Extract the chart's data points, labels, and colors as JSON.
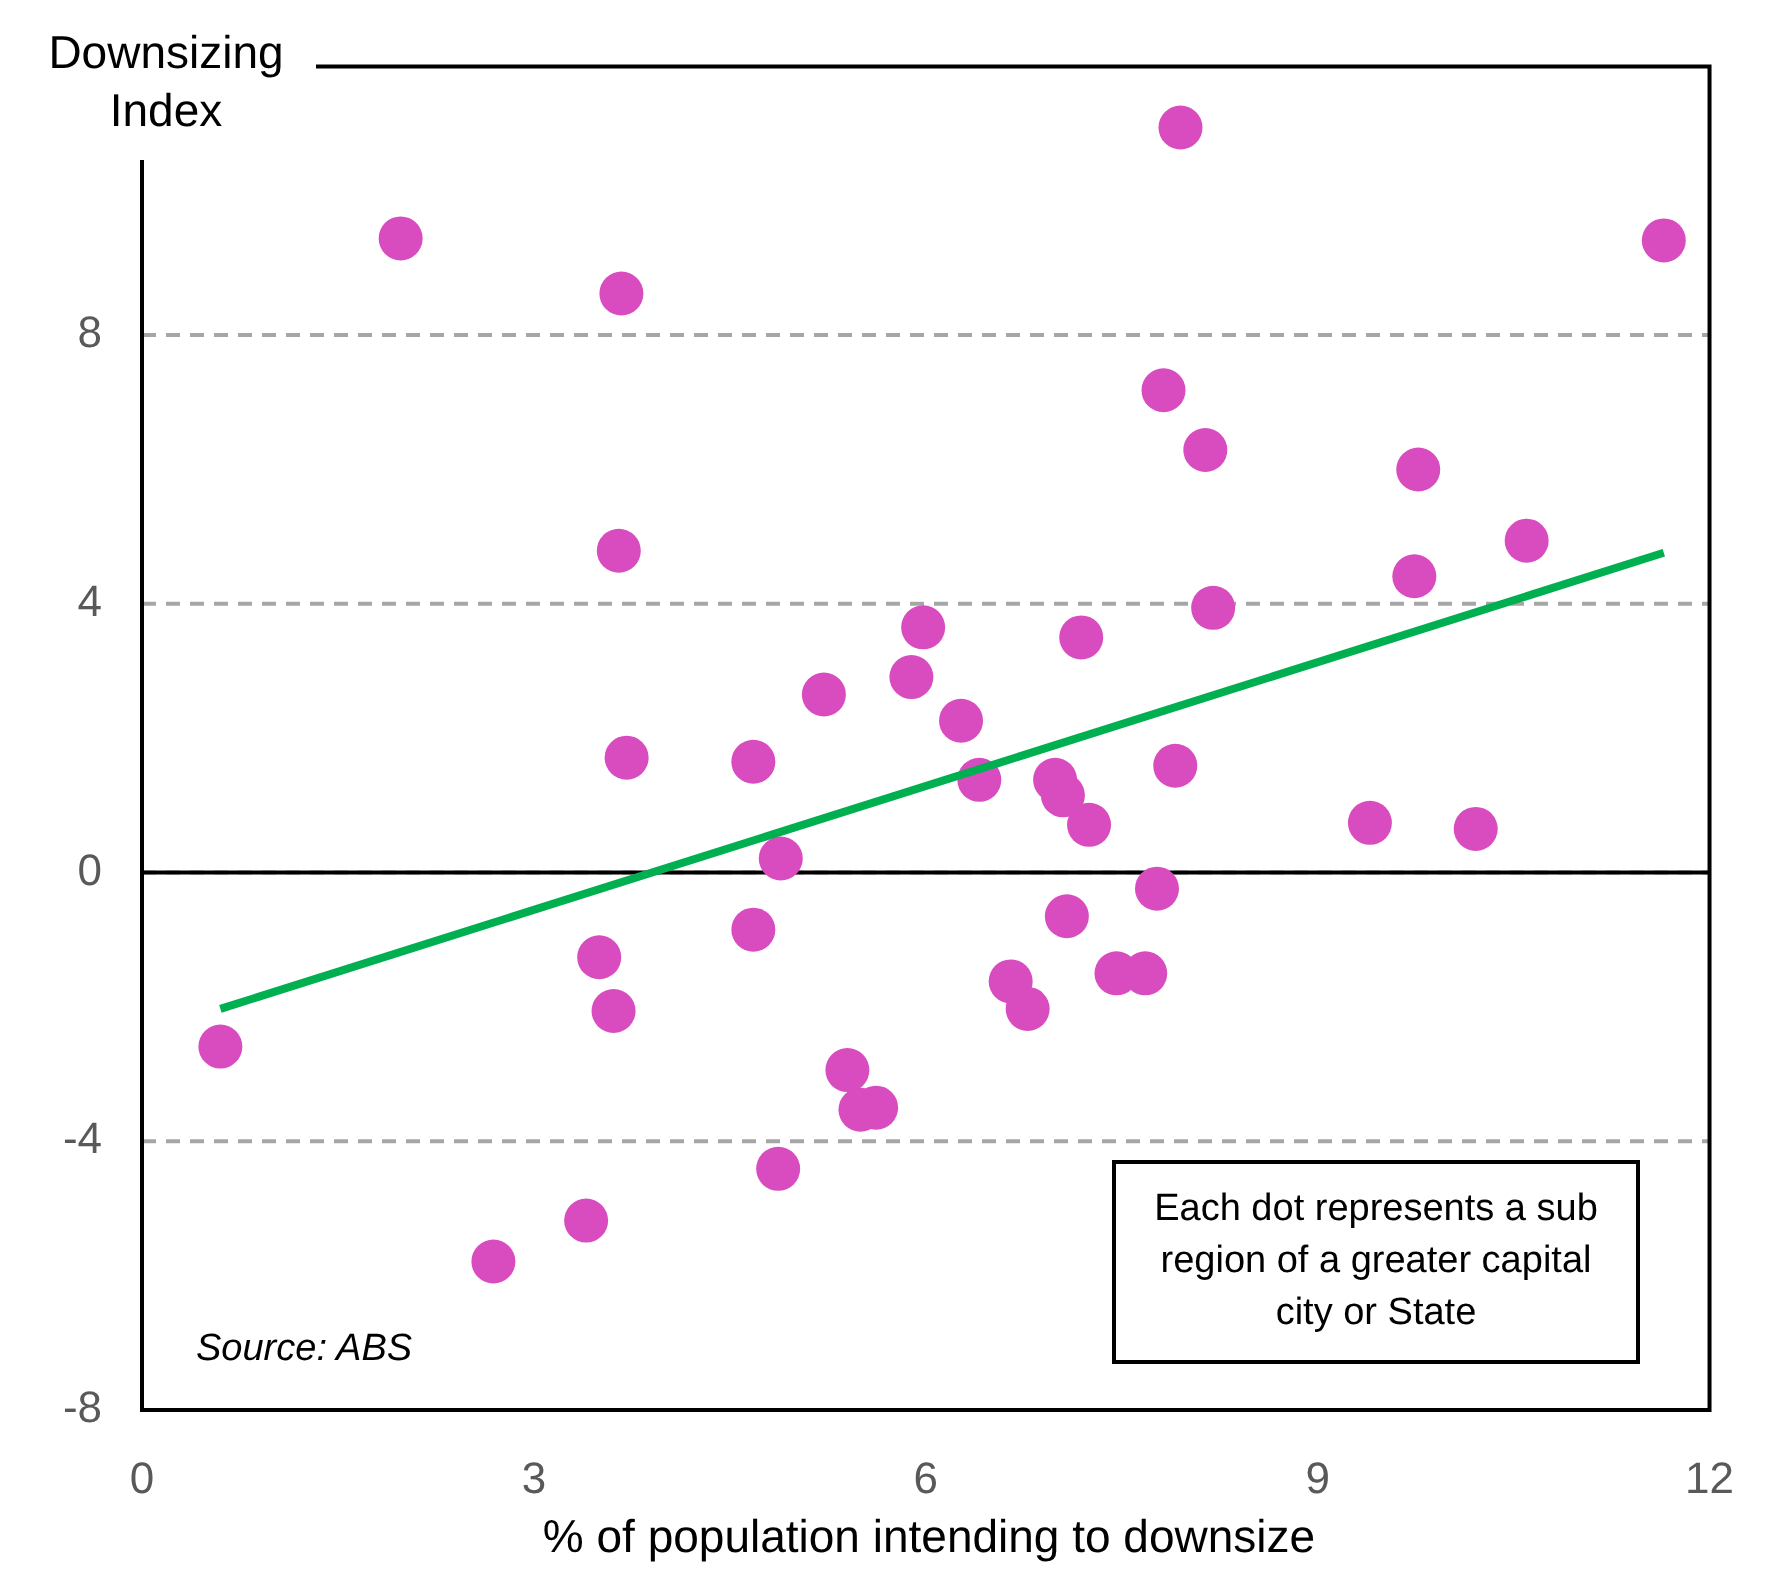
{
  "chart_data": {
    "type": "scatter",
    "ylabel": "Downsizing Index",
    "xlabel": "% of population intending to downsize",
    "xlim": [
      0,
      12
    ],
    "xticks": [
      0,
      3,
      6,
      9,
      12
    ],
    "ylim": [
      -8,
      12
    ],
    "yticks": [
      -8,
      -4,
      0,
      4,
      8
    ],
    "grid": "y",
    "legend": false,
    "ref_lines": [
      {
        "axis": "y",
        "value": 0,
        "color": "#000000",
        "line_style": "solid"
      }
    ],
    "annotations": [
      "Source: ABS",
      "Each dot represents a sub region of a greater capital city or State"
    ],
    "series": [
      {
        "marker": "circle",
        "color": "#d94cc0",
        "x": [
          0.6,
          1.98,
          2.69,
          3.4,
          3.5,
          3.61,
          3.67,
          3.65,
          3.71,
          4.68,
          4.68,
          4.87,
          4.89,
          5.22,
          5.4,
          5.5,
          5.62,
          5.89,
          5.98,
          6.27,
          6.41,
          6.65,
          6.78,
          6.99,
          7.05,
          7.08,
          7.19,
          7.25,
          7.46,
          7.68,
          7.77,
          7.82,
          7.91,
          7.95,
          8.14,
          8.2,
          9.4,
          9.74,
          9.77,
          10.21,
          10.6,
          11.65
        ],
        "values": [
          -2.59,
          9.44,
          -5.79,
          -5.18,
          -1.26,
          -2.06,
          8.62,
          4.79,
          1.71,
          1.65,
          -0.85,
          -4.41,
          0.21,
          2.65,
          -2.94,
          -3.53,
          -3.5,
          2.91,
          3.65,
          2.26,
          1.38,
          -1.62,
          -2.03,
          1.38,
          1.15,
          -0.65,
          3.5,
          0.71,
          -1.5,
          -1.5,
          -0.24,
          7.18,
          1.59,
          11.09,
          6.29,
          3.94,
          0.74,
          4.41,
          6.0,
          0.65,
          4.94,
          9.41
        ]
      },
      {
        "type": "line",
        "marker": "none",
        "line_style": "solid",
        "color": "#00b050",
        "x": [
          0.6,
          11.65
        ],
        "values": [
          -2.03,
          4.76
        ]
      }
    ]
  }
}
